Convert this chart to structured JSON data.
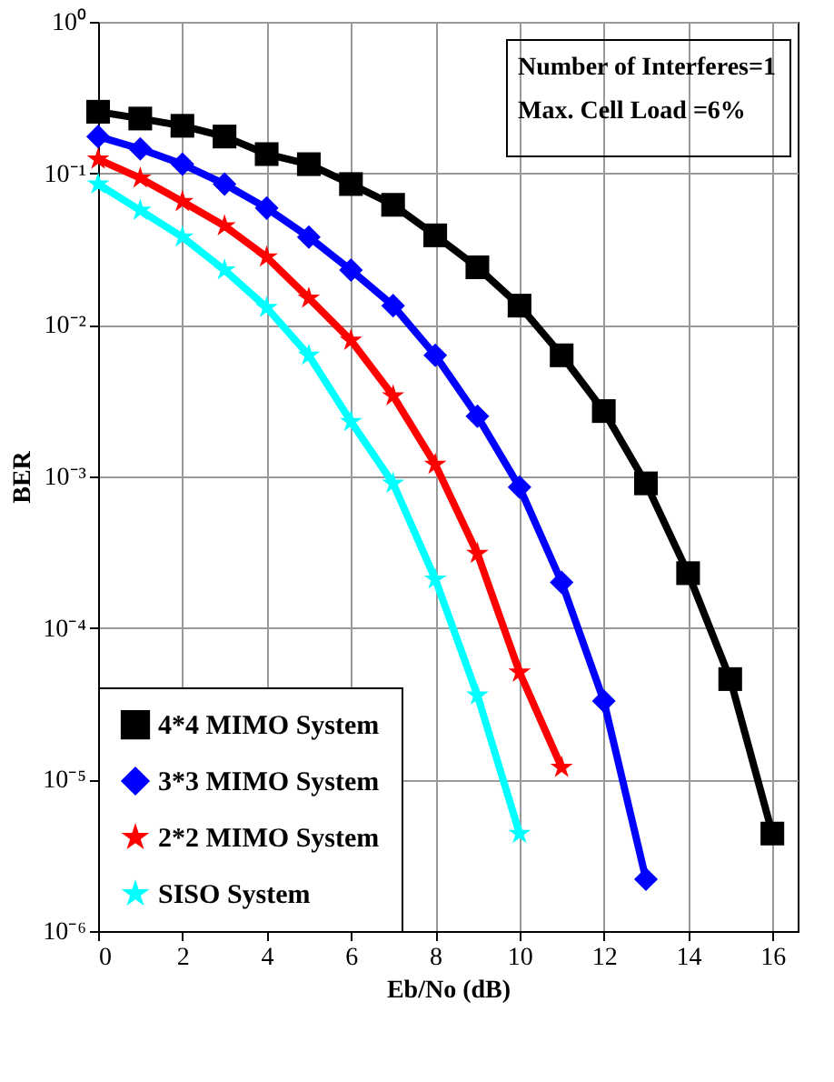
{
  "chart_data": {
    "type": "line",
    "xlabel": "Eb/No (dB)",
    "ylabel": "BER",
    "annotations": [
      "Number of Interferes=1",
      "Max. Cell Load =6%"
    ],
    "xlim": [
      0,
      16.6
    ],
    "xticks": [
      0,
      2,
      4,
      6,
      8,
      10,
      12,
      14,
      16
    ],
    "log": "y",
    "ylim": [
      1e-06,
      1
    ],
    "yticks": [
      {
        "value": 1e-06,
        "label": "10⁻⁶"
      },
      {
        "value": 1e-05,
        "label": "10⁻⁵"
      },
      {
        "value": 0.0001,
        "label": "10⁻⁴"
      },
      {
        "value": 0.001,
        "label": "10⁻³"
      },
      {
        "value": 0.01,
        "label": "10⁻²"
      },
      {
        "value": 0.1,
        "label": "10⁻¹"
      },
      {
        "value": 1,
        "label": "10⁰"
      }
    ],
    "grid": true,
    "legend": "bottom left",
    "series": [
      {
        "name": "4*4 MIMO System",
        "color": "#000000",
        "marker": "square",
        "x": [
          0,
          1,
          2,
          3,
          4,
          5,
          6,
          7,
          8,
          9,
          10,
          11,
          12,
          13,
          14,
          15,
          16
        ],
        "values": [
          0.255,
          0.23,
          0.206,
          0.175,
          0.134,
          0.115,
          0.085,
          0.062,
          0.039,
          0.024,
          0.0134,
          0.0063,
          0.0027,
          0.0009,
          0.00023,
          4.6e-05,
          4.4e-06
        ]
      },
      {
        "name": "3*3 MIMO System",
        "color": "#0000ff",
        "marker": "diamond",
        "x": [
          0,
          1,
          2,
          3,
          4,
          5,
          6,
          7,
          8,
          9,
          10,
          11,
          12,
          13
        ],
        "values": [
          0.175,
          0.145,
          0.115,
          0.085,
          0.059,
          0.038,
          0.023,
          0.0134,
          0.0063,
          0.0025,
          0.00085,
          0.0002,
          3.3e-05,
          2.2e-06
        ]
      },
      {
        "name": "2*2 MIMO System",
        "color": "#ff0000",
        "marker": "star",
        "x": [
          0,
          1,
          2,
          3,
          4,
          5,
          6,
          7,
          8,
          9,
          10,
          11
        ],
        "values": [
          0.124,
          0.093,
          0.065,
          0.045,
          0.028,
          0.015,
          0.0079,
          0.0034,
          0.0012,
          0.00031,
          5.1e-05,
          1.2e-05
        ]
      },
      {
        "name": "SISO System",
        "color": "#00ffff",
        "marker": "star",
        "x": [
          0,
          1,
          2,
          3,
          4,
          5,
          6,
          7,
          8,
          9,
          10
        ],
        "values": [
          0.085,
          0.057,
          0.038,
          0.023,
          0.013,
          0.0063,
          0.0023,
          0.0009,
          0.00021,
          3.6e-05,
          4.4e-06
        ]
      }
    ]
  }
}
